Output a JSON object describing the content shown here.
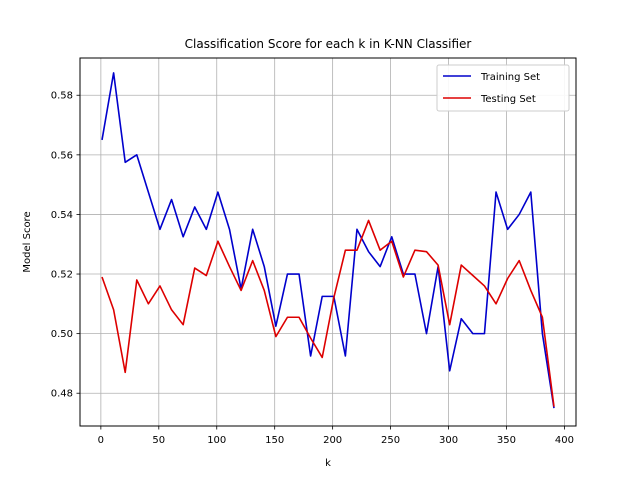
{
  "chart_data": {
    "type": "line",
    "title": "Classification Score for each k in K-NN Classifier",
    "xlabel": "k",
    "ylabel": "Model Score",
    "xlim": [
      -18,
      410
    ],
    "ylim": [
      0.469,
      0.5925
    ],
    "xticks": [
      0,
      50,
      100,
      150,
      200,
      250,
      300,
      350,
      400
    ],
    "yticks": [
      0.48,
      0.5,
      0.52,
      0.54,
      0.56,
      0.58
    ],
    "xtick_labels": [
      "0",
      "50",
      "100",
      "150",
      "200",
      "250",
      "300",
      "350",
      "400"
    ],
    "ytick_labels": [
      "0.48",
      "0.50",
      "0.52",
      "0.54",
      "0.56",
      "0.58"
    ],
    "grid": true,
    "legend_position": "top-right",
    "x": [
      1,
      11,
      21,
      31,
      41,
      51,
      61,
      71,
      81,
      91,
      101,
      111,
      121,
      131,
      141,
      151,
      161,
      171,
      181,
      191,
      201,
      211,
      221,
      231,
      241,
      251,
      261,
      271,
      281,
      291,
      301,
      311,
      321,
      331,
      341,
      351,
      361,
      371,
      381,
      391
    ],
    "series": [
      {
        "name": "Training Set",
        "color": "#0000cc",
        "values": [
          0.565,
          0.5875,
          0.5575,
          0.56,
          0.5475,
          0.535,
          0.545,
          0.5325,
          0.5425,
          0.535,
          0.5475,
          0.535,
          0.515,
          0.535,
          0.5225,
          0.5025,
          0.52,
          0.52,
          0.4925,
          0.5125,
          0.5125,
          0.4925,
          0.535,
          0.5275,
          0.5225,
          0.5325,
          0.52,
          0.52,
          0.5,
          0.5225,
          0.4875,
          0.505,
          0.5,
          0.5,
          0.5475,
          0.535,
          0.54,
          0.5475,
          0.5,
          0.475
        ]
      },
      {
        "name": "Testing Set",
        "color": "#dd0000",
        "values": [
          0.519,
          0.508,
          0.487,
          0.518,
          0.51,
          0.516,
          0.508,
          0.503,
          0.522,
          0.5195,
          0.531,
          0.5225,
          0.5145,
          0.5245,
          0.5145,
          0.499,
          0.5055,
          0.5055,
          0.4985,
          0.492,
          0.512,
          0.528,
          0.528,
          0.538,
          0.528,
          0.531,
          0.519,
          0.528,
          0.5275,
          0.523,
          0.503,
          0.523,
          0.5195,
          0.516,
          0.51,
          0.5185,
          0.5245,
          0.5145,
          0.5055,
          0.4755
        ]
      }
    ]
  }
}
